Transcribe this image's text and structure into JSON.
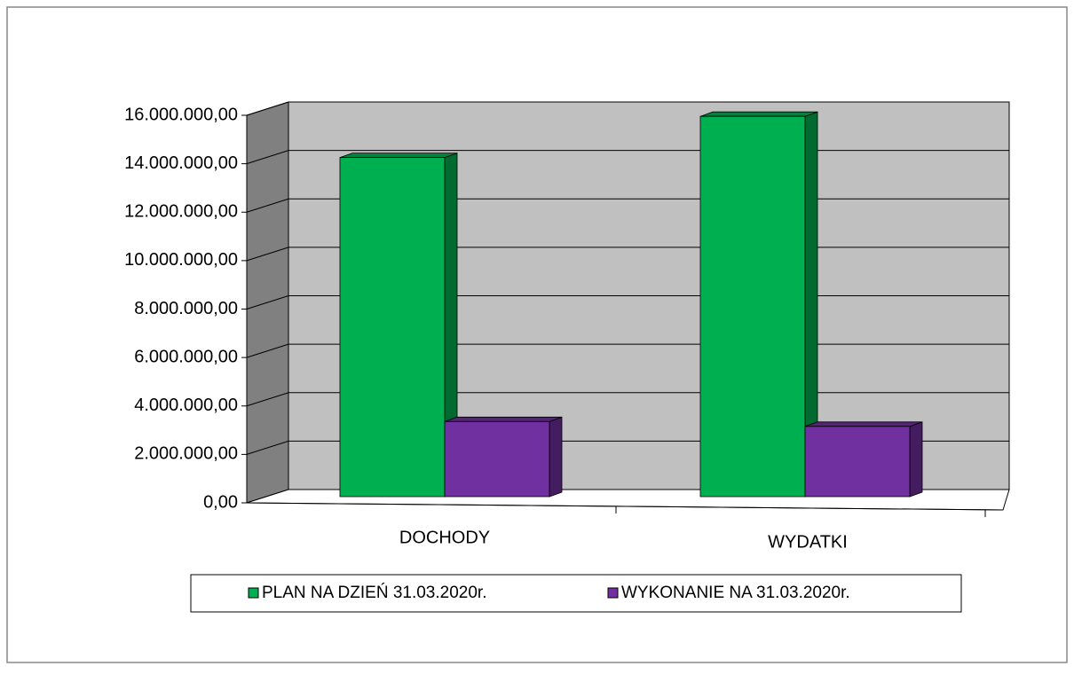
{
  "chart_data": {
    "type": "bar3d",
    "categories": [
      "DOCHODY",
      "WYDATKI"
    ],
    "series": [
      {
        "name": "PLAN NA DZIEŃ 31.03.2020r.",
        "color": "#00b050",
        "values": [
          14000000,
          15700000
        ]
      },
      {
        "name": "WYKONANIE NA 31.03.2020r.",
        "color": "#7030a0",
        "values": [
          3100000,
          2900000
        ]
      }
    ],
    "ylim": [
      0,
      16000000
    ],
    "yticks": [
      {
        "value": 0,
        "label": "0,00"
      },
      {
        "value": 2000000,
        "label": "2.000.000,00"
      },
      {
        "value": 4000000,
        "label": "4.000.000,00"
      },
      {
        "value": 6000000,
        "label": "6.000.000,00"
      },
      {
        "value": 8000000,
        "label": "8.000.000,00"
      },
      {
        "value": 10000000,
        "label": "10.000.000,00"
      },
      {
        "value": 12000000,
        "label": "12.000.000,00"
      },
      {
        "value": 14000000,
        "label": "14.000.000,00"
      },
      {
        "value": 16000000,
        "label": "16.000.000,00"
      }
    ],
    "grid": true,
    "legend": "bottom"
  }
}
